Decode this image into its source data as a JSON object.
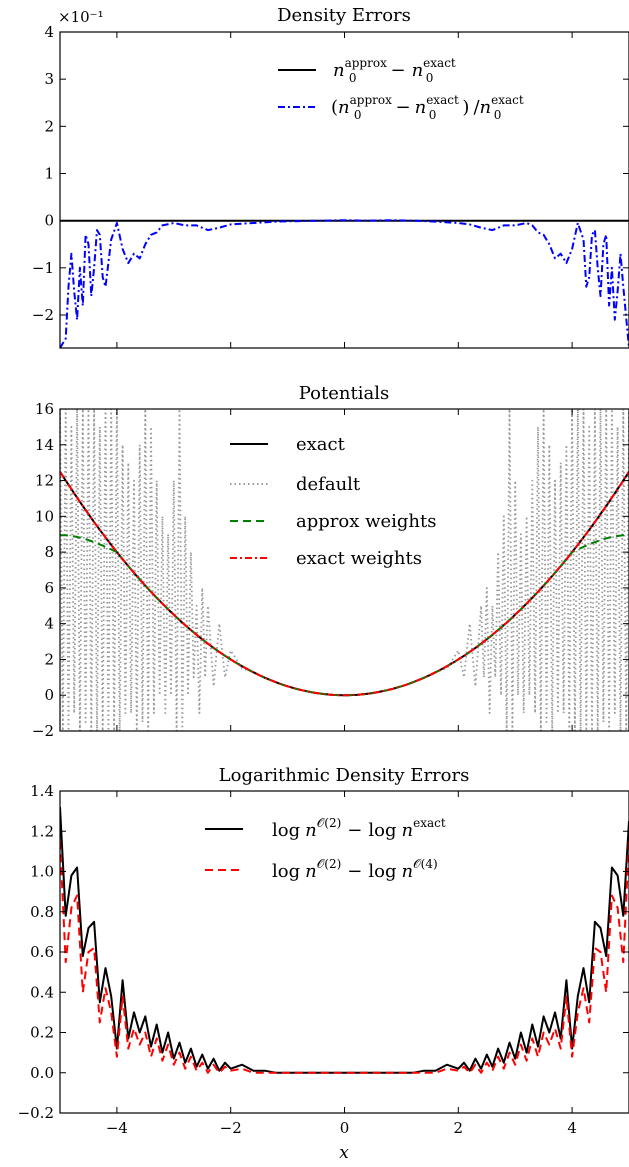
{
  "figure": {
    "xlabel": "x",
    "xlim": [
      -5,
      5
    ],
    "xticks": [
      -4,
      -2,
      0,
      2,
      4
    ],
    "xtick_labels": [
      "−4",
      "−2",
      "0",
      "2",
      "4"
    ]
  },
  "chart_data": [
    {
      "type": "line",
      "title": "Density Errors",
      "scale_label": "×10⁻¹",
      "ylim": [
        -2.7,
        4.0
      ],
      "yticks": [
        -2,
        -1,
        0,
        1,
        2,
        3,
        4
      ],
      "ytick_labels": [
        "−2",
        "−1",
        "0",
        "1",
        "2",
        "3",
        "4"
      ],
      "grid": false,
      "legend_position": "top-right",
      "legend": [
        {
          "text": "n₀^approx − n₀^exact",
          "main": "n",
          "sub": "0",
          "sup": "approx",
          "op": "−",
          "main2": "n",
          "sub2": "0",
          "sup2": "exact",
          "color": "#000000",
          "style": "solid"
        },
        {
          "text": "(n₀^approx − n₀^exact) / n₀^exact",
          "lparen": "(",
          "main": "n",
          "sub": "0",
          "sup": "approx",
          "op": "−",
          "main2": "n",
          "sub2": "0",
          "sup2": "exact",
          "rparen": ")",
          "div": "/",
          "main3": "n",
          "sub3": "0",
          "sup3": "exact",
          "color": "#0000ff",
          "style": "dashdot"
        }
      ],
      "series": [
        {
          "color": "#000000",
          "style": "solid",
          "x": [
            -5,
            5
          ],
          "y": [
            0,
            0
          ]
        },
        {
          "color": "#0000ff",
          "style": "dashdot",
          "x": [
            -5.0,
            -4.9,
            -4.85,
            -4.8,
            -4.75,
            -4.7,
            -4.65,
            -4.6,
            -4.55,
            -4.5,
            -4.45,
            -4.4,
            -4.35,
            -4.3,
            -4.25,
            -4.2,
            -4.1,
            -4.0,
            -3.9,
            -3.8,
            -3.7,
            -3.6,
            -3.5,
            -3.4,
            -3.3,
            -3.2,
            -3.0,
            -2.8,
            -2.6,
            -2.4,
            -2.2,
            -2.0,
            -1.6,
            -1.2,
            -0.8,
            -0.4,
            0.0,
            0.4,
            0.8,
            1.2,
            1.6,
            2.0,
            2.2,
            2.4,
            2.6,
            2.8,
            3.0,
            3.2,
            3.3,
            3.4,
            3.5,
            3.6,
            3.7,
            3.8,
            3.9,
            4.0,
            4.1,
            4.2,
            4.25,
            4.3,
            4.35,
            4.4,
            4.45,
            4.5,
            4.55,
            4.6,
            4.65,
            4.7,
            4.75,
            4.8,
            4.85,
            4.9,
            5.0
          ],
          "y": [
            -2.7,
            -2.5,
            -1.4,
            -0.7,
            -1.5,
            -2.1,
            -1.0,
            -1.8,
            -0.3,
            -0.5,
            -1.6,
            -1.0,
            -0.2,
            -0.3,
            -1.2,
            -1.4,
            -0.4,
            -0.05,
            -0.6,
            -0.9,
            -0.7,
            -0.8,
            -0.5,
            -0.3,
            -0.25,
            -0.1,
            -0.05,
            -0.1,
            -0.1,
            -0.2,
            -0.15,
            -0.08,
            -0.05,
            -0.02,
            -0.01,
            0.0,
            0.01,
            0.0,
            0.01,
            0.0,
            -0.02,
            -0.05,
            -0.08,
            -0.15,
            -0.2,
            -0.1,
            -0.1,
            -0.05,
            -0.1,
            -0.25,
            -0.3,
            -0.5,
            -0.8,
            -0.7,
            -0.9,
            -0.6,
            -0.05,
            -0.4,
            -1.4,
            -1.2,
            -0.3,
            -0.2,
            -1.0,
            -1.6,
            -0.5,
            -0.3,
            -1.8,
            -1.0,
            -2.1,
            -1.5,
            -0.7,
            -1.4,
            -2.7
          ]
        }
      ]
    },
    {
      "type": "line",
      "title": "Potentials",
      "ylim": [
        -2,
        16
      ],
      "yticks": [
        -2,
        0,
        2,
        4,
        6,
        8,
        10,
        12,
        14,
        16
      ],
      "ytick_labels": [
        "−2",
        "0",
        "2",
        "4",
        "6",
        "8",
        "10",
        "12",
        "14",
        "16"
      ],
      "grid": false,
      "legend_position": "top-center",
      "legend": [
        {
          "text": "exact",
          "color": "#000000",
          "style": "solid"
        },
        {
          "text": "default",
          "color": "#999999",
          "style": "dotted"
        },
        {
          "text": "approx weights",
          "color": "#008000",
          "style": "dashed"
        },
        {
          "text": "exact weights",
          "color": "#ff0000",
          "style": "dashdot"
        }
      ],
      "series": [
        {
          "name": "exact",
          "color": "#000000",
          "style": "solid",
          "function": "x^2/2"
        },
        {
          "name": "default",
          "color": "#999999",
          "style": "dotted",
          "x": [
            -5.0,
            -4.95,
            -4.9,
            -4.85,
            -4.8,
            -4.75,
            -4.7,
            -4.65,
            -4.6,
            -4.55,
            -4.5,
            -4.45,
            -4.4,
            -4.35,
            -4.3,
            -4.25,
            -4.2,
            -4.15,
            -4.1,
            -4.05,
            -4.0,
            -3.95,
            -3.9,
            -3.85,
            -3.8,
            -3.75,
            -3.7,
            -3.65,
            -3.6,
            -3.55,
            -3.5,
            -3.45,
            -3.4,
            -3.35,
            -3.3,
            -3.25,
            -3.2,
            -3.15,
            -3.1,
            -3.05,
            -3.0,
            -2.95,
            -2.9,
            -2.85,
            -2.8,
            -2.75,
            -2.7,
            -2.65,
            -2.6,
            -2.55,
            -2.5,
            -2.45,
            -2.4,
            -2.3,
            -2.2,
            -2.1,
            -2.0,
            -1.8,
            -1.6,
            -1.4,
            -1.2,
            -1.0,
            -0.5,
            0.0,
            0.5,
            1.0,
            1.2,
            1.4,
            1.6,
            1.8,
            2.0,
            2.1,
            2.2,
            2.3,
            2.4,
            2.45,
            2.5,
            2.55,
            2.6,
            2.65,
            2.7,
            2.75,
            2.8,
            2.85,
            2.9,
            2.95,
            3.0,
            3.05,
            3.1,
            3.15,
            3.2,
            3.25,
            3.3,
            3.35,
            3.4,
            3.45,
            3.5,
            3.55,
            3.6,
            3.65,
            3.7,
            3.75,
            3.8,
            3.85,
            3.9,
            3.95,
            4.0,
            4.05,
            4.1,
            4.15,
            4.2,
            4.25,
            4.3,
            4.35,
            4.4,
            4.45,
            4.5,
            4.55,
            4.6,
            4.65,
            4.7,
            4.75,
            4.8,
            4.85,
            4.9,
            4.95,
            5.0
          ],
          "y": [
            16,
            -2,
            16,
            -2,
            15,
            -1,
            16,
            -2,
            16,
            -1.5,
            16,
            -2,
            16,
            -2,
            15,
            -2,
            16,
            -2,
            16,
            -2,
            16,
            -2,
            14,
            -1,
            13,
            -1,
            12,
            -2,
            14,
            -1.5,
            16,
            -2,
            15,
            -1,
            12,
            0,
            10,
            -1,
            9,
            0,
            12,
            -2,
            16,
            -2,
            10,
            0,
            8,
            1,
            5,
            -1,
            6,
            1,
            5,
            0.5,
            4,
            1,
            2.5,
            1.5,
            1.3,
            1,
            0.7,
            0.5,
            0.1,
            0,
            0.1,
            0.5,
            0.7,
            1,
            1.3,
            1.5,
            2.5,
            1,
            4,
            0.5,
            5,
            1,
            6,
            -1,
            5,
            1,
            8,
            0,
            10,
            -2,
            16,
            -2,
            12,
            0,
            9,
            -1,
            10,
            0,
            12,
            -1,
            15,
            -2,
            16,
            -1.5,
            14,
            -2,
            12,
            -1,
            13,
            -1,
            14,
            -2,
            16,
            -2,
            16,
            -2,
            16,
            -2,
            15,
            -2,
            16,
            -2,
            16,
            -1.5,
            16,
            -2,
            16,
            -1,
            15,
            -2,
            16,
            -2,
            16
          ]
        },
        {
          "name": "approx weights",
          "color": "#008000",
          "style": "dashed",
          "function": "x^2/2, flattening to ~9 near |x|=5"
        },
        {
          "name": "exact weights",
          "color": "#ff0000",
          "style": "dashdot",
          "function": "x^2/2"
        }
      ]
    },
    {
      "type": "line",
      "title": "Logarithmic Density Errors",
      "ylim": [
        -0.2,
        1.4
      ],
      "yticks": [
        -0.2,
        0.0,
        0.2,
        0.4,
        0.6,
        0.8,
        1.0,
        1.2,
        1.4
      ],
      "ytick_labels": [
        "−0.2",
        "0.0",
        "0.2",
        "0.4",
        "0.6",
        "0.8",
        "1.0",
        "1.2",
        "1.4"
      ],
      "grid": false,
      "legend_position": "top-center",
      "legend": [
        {
          "text": "log n^O(2) − log n^exact",
          "fn": "log",
          "main": "n",
          "sup": "𝒪(2)",
          "op": "−",
          "fn2": "log",
          "main2": "n",
          "sup2": "exact",
          "color": "#000000",
          "style": "solid"
        },
        {
          "text": "log n^O(2) − log n^O(4)",
          "fn": "log",
          "main": "n",
          "sup": "𝒪(2)",
          "op": "−",
          "fn2": "log",
          "main2": "n",
          "sup2": "𝒪(4)",
          "color": "#ff0000",
          "style": "dashed"
        }
      ],
      "series": [
        {
          "name": "log n^O(2) − log n^exact",
          "color": "#000000",
          "style": "solid",
          "x": [
            -5.0,
            -4.9,
            -4.8,
            -4.7,
            -4.6,
            -4.5,
            -4.4,
            -4.3,
            -4.2,
            -4.1,
            -4.0,
            -3.9,
            -3.8,
            -3.7,
            -3.6,
            -3.5,
            -3.4,
            -3.3,
            -3.2,
            -3.1,
            -3.0,
            -2.9,
            -2.8,
            -2.7,
            -2.6,
            -2.5,
            -2.4,
            -2.3,
            -2.2,
            -2.1,
            -2.0,
            -1.8,
            -1.6,
            -1.4,
            -1.2,
            -1.0,
            -0.8,
            -0.6,
            -0.4,
            -0.2,
            0.0,
            0.2,
            0.4,
            0.6,
            0.8,
            1.0,
            1.2,
            1.4,
            1.6,
            1.8,
            2.0,
            2.1,
            2.2,
            2.3,
            2.4,
            2.5,
            2.6,
            2.7,
            2.8,
            2.9,
            3.0,
            3.1,
            3.2,
            3.3,
            3.4,
            3.5,
            3.6,
            3.7,
            3.8,
            3.9,
            4.0,
            4.1,
            4.2,
            4.3,
            4.4,
            4.5,
            4.6,
            4.7,
            4.8,
            4.9,
            5.0
          ],
          "y": [
            1.32,
            0.78,
            0.98,
            1.02,
            0.58,
            0.72,
            0.75,
            0.35,
            0.52,
            0.38,
            0.12,
            0.46,
            0.17,
            0.3,
            0.2,
            0.28,
            0.13,
            0.24,
            0.1,
            0.2,
            0.07,
            0.15,
            0.05,
            0.12,
            0.03,
            0.09,
            0.02,
            0.07,
            0.01,
            0.05,
            0.02,
            0.04,
            0.01,
            0.01,
            0.0,
            0.0,
            0.0,
            0.0,
            0.0,
            0.0,
            0.0,
            0.0,
            0.0,
            0.0,
            0.0,
            0.0,
            0.0,
            0.01,
            0.01,
            0.04,
            0.02,
            0.05,
            0.01,
            0.07,
            0.02,
            0.09,
            0.03,
            0.12,
            0.05,
            0.15,
            0.07,
            0.2,
            0.1,
            0.24,
            0.13,
            0.28,
            0.2,
            0.3,
            0.17,
            0.46,
            0.12,
            0.38,
            0.52,
            0.35,
            0.75,
            0.72,
            0.58,
            1.02,
            0.98,
            0.78,
            1.25
          ]
        },
        {
          "name": "log n^O(2) − log n^O(4)",
          "color": "#ff0000",
          "style": "dashed",
          "x": [
            -5.0,
            -4.9,
            -4.8,
            -4.7,
            -4.6,
            -4.5,
            -4.4,
            -4.3,
            -4.2,
            -4.1,
            -4.0,
            -3.9,
            -3.8,
            -3.7,
            -3.6,
            -3.5,
            -3.4,
            -3.3,
            -3.2,
            -3.1,
            -3.0,
            -2.9,
            -2.8,
            -2.7,
            -2.6,
            -2.5,
            -2.4,
            -2.3,
            -2.2,
            -2.1,
            -2.0,
            -1.8,
            -1.6,
            -1.4,
            -1.2,
            -1.0,
            0.0,
            1.0,
            1.2,
            1.4,
            1.6,
            1.8,
            2.0,
            2.1,
            2.2,
            2.3,
            2.4,
            2.5,
            2.6,
            2.7,
            2.8,
            2.9,
            3.0,
            3.1,
            3.2,
            3.3,
            3.4,
            3.5,
            3.6,
            3.7,
            3.8,
            3.9,
            4.0,
            4.1,
            4.2,
            4.3,
            4.4,
            4.5,
            4.6,
            4.7,
            4.8,
            4.9,
            5.0
          ],
          "y": [
            1.15,
            0.55,
            0.82,
            0.88,
            0.4,
            0.6,
            0.62,
            0.25,
            0.42,
            0.3,
            0.08,
            0.38,
            0.12,
            0.22,
            0.14,
            0.2,
            0.08,
            0.17,
            0.06,
            0.14,
            0.04,
            0.1,
            0.02,
            0.08,
            0.01,
            0.05,
            0.0,
            0.04,
            0.0,
            0.03,
            0.01,
            0.02,
            0.0,
            0.0,
            0.0,
            0.0,
            0.0,
            0.0,
            0.0,
            0.0,
            0.0,
            0.02,
            0.01,
            0.03,
            0.0,
            0.04,
            0.0,
            0.05,
            0.01,
            0.08,
            0.02,
            0.1,
            0.04,
            0.14,
            0.06,
            0.17,
            0.08,
            0.2,
            0.14,
            0.22,
            0.12,
            0.38,
            0.08,
            0.3,
            0.42,
            0.25,
            0.62,
            0.6,
            0.4,
            0.88,
            0.82,
            0.55,
            1.15
          ]
        }
      ]
    }
  ]
}
